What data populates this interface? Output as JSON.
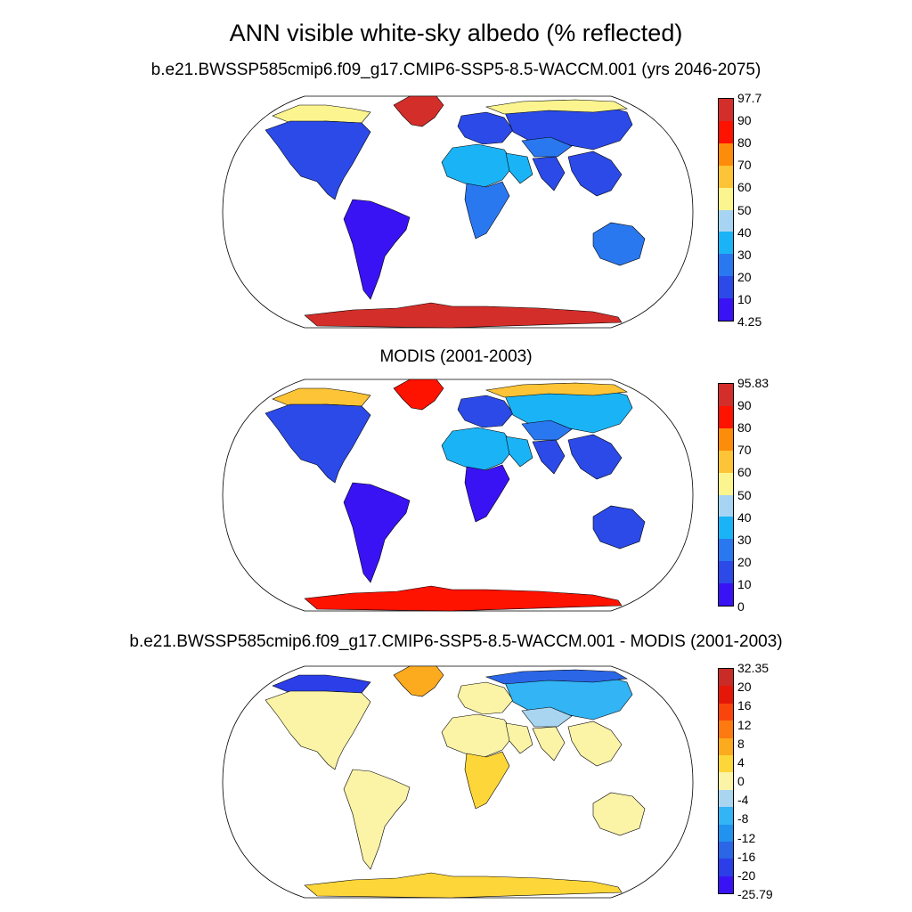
{
  "figure": {
    "title": "ANN visible white-sky albedo (% reflected)"
  },
  "colors": {
    "albedo_scale": [
      "#3a13f4",
      "#2b4ae8",
      "#2a78f0",
      "#1ab4f6",
      "#a7d4f2",
      "#fcf58f",
      "#fcc436",
      "#fd8c0a",
      "#fe1200",
      "#d42e2a"
    ],
    "diff_scale": [
      "#3a13f4",
      "#2b3ee8",
      "#2a66e6",
      "#2192ee",
      "#33b4f4",
      "#a9d5f0",
      "#fbf3a6",
      "#fdd63a",
      "#fcaa1e",
      "#fd7a10",
      "#f9440c",
      "#e51708",
      "#c92c26"
    ]
  },
  "panels": [
    {
      "id": "model",
      "title": "b.e21.BWSSP585cmip6.f09_g17.CMIP6-SSP5-8.5-WACCM.001 (yrs 2046-2075)",
      "colorbar": {
        "scale": "albedo_scale",
        "labels": [
          "97.7",
          "90",
          "80",
          "70",
          "60",
          "50",
          "40",
          "30",
          "20",
          "10",
          "4.25"
        ]
      },
      "regions": [
        {
          "name": "greenland",
          "level": 9
        },
        {
          "name": "antarctica",
          "level": 9
        },
        {
          "name": "canadian-arctic",
          "level": 5
        },
        {
          "name": "north-america",
          "level": 1
        },
        {
          "name": "south-america",
          "level": 0
        },
        {
          "name": "north-africa-sahara",
          "level": 3
        },
        {
          "name": "arabia",
          "level": 3
        },
        {
          "name": "southern-africa",
          "level": 2
        },
        {
          "name": "europe",
          "level": 1
        },
        {
          "name": "siberia-asia",
          "level": 1
        },
        {
          "name": "central-asia-deserts",
          "level": 2
        },
        {
          "name": "south-asia",
          "level": 1
        },
        {
          "name": "southeast-asia",
          "level": 1
        },
        {
          "name": "australia",
          "level": 2
        },
        {
          "name": "arctic-coast-eurasia",
          "level": 5
        }
      ]
    },
    {
      "id": "obs",
      "title": "MODIS (2001-2003)",
      "colorbar": {
        "scale": "albedo_scale",
        "labels": [
          "95.83",
          "90",
          "80",
          "70",
          "60",
          "50",
          "40",
          "30",
          "20",
          "10",
          "0"
        ]
      },
      "regions": [
        {
          "name": "greenland",
          "level": 8
        },
        {
          "name": "antarctica",
          "level": 8
        },
        {
          "name": "canadian-arctic",
          "level": 6
        },
        {
          "name": "north-america",
          "level": 1
        },
        {
          "name": "south-america",
          "level": 0
        },
        {
          "name": "north-africa-sahara",
          "level": 3
        },
        {
          "name": "arabia",
          "level": 3
        },
        {
          "name": "southern-africa",
          "level": 0
        },
        {
          "name": "europe",
          "level": 1
        },
        {
          "name": "siberia-asia",
          "level": 3
        },
        {
          "name": "central-asia-deserts",
          "level": 2
        },
        {
          "name": "south-asia",
          "level": 1
        },
        {
          "name": "southeast-asia",
          "level": 1
        },
        {
          "name": "australia",
          "level": 1
        },
        {
          "name": "arctic-coast-eurasia",
          "level": 6
        }
      ]
    },
    {
      "id": "diff",
      "title": "b.e21.BWSSP585cmip6.f09_g17.CMIP6-SSP5-8.5-WACCM.001 - MODIS (2001-2003)",
      "colorbar": {
        "scale": "diff_scale",
        "labels": [
          "32.35",
          "20",
          "16",
          "12",
          "8",
          "4",
          "0",
          "-4",
          "-8",
          "-12",
          "-16",
          "-20",
          "-25.79"
        ]
      },
      "regions": [
        {
          "name": "greenland",
          "level": 8
        },
        {
          "name": "antarctica",
          "level": 7
        },
        {
          "name": "canadian-arctic",
          "level": 1
        },
        {
          "name": "north-america",
          "level": 6
        },
        {
          "name": "south-america",
          "level": 6
        },
        {
          "name": "north-africa-sahara",
          "level": 6
        },
        {
          "name": "arabia",
          "level": 6
        },
        {
          "name": "southern-africa",
          "level": 7
        },
        {
          "name": "europe",
          "level": 6
        },
        {
          "name": "siberia-asia",
          "level": 4
        },
        {
          "name": "central-asia-deserts",
          "level": 5
        },
        {
          "name": "south-asia",
          "level": 6
        },
        {
          "name": "southeast-asia",
          "level": 6
        },
        {
          "name": "australia",
          "level": 6
        },
        {
          "name": "arctic-coast-eurasia",
          "level": 2
        }
      ]
    }
  ]
}
